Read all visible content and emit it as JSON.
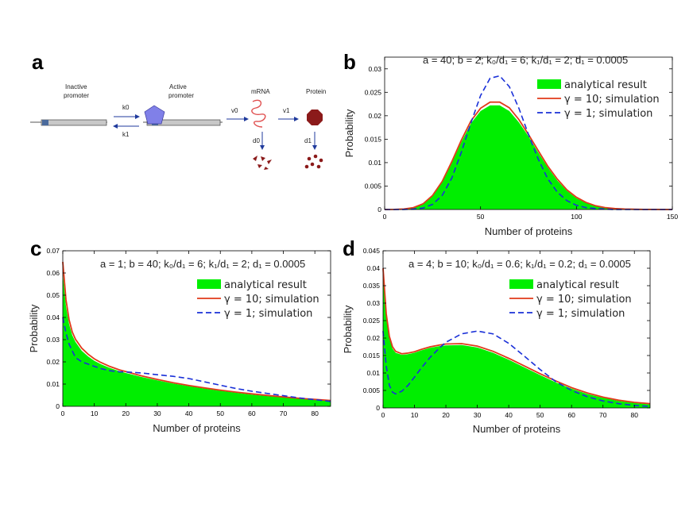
{
  "figure": {
    "panel_labels": [
      "a",
      "b",
      "c",
      "d"
    ]
  },
  "diagram": {
    "inactive_promoter": [
      "Inactive",
      "promoter"
    ],
    "active_promoter": [
      "Active",
      "promoter"
    ],
    "mrna": "mRNA",
    "protein": "Protein",
    "rates": {
      "k0": "k0",
      "k1": "k1",
      "v0": "v0",
      "v1": "v1",
      "d0": "d0",
      "d1": "d1"
    },
    "colors": {
      "promoter_body": "#c8c8c8",
      "site": "#4a6a9c",
      "activator": "#8080e8",
      "mrna": "#e05050",
      "protein": "#8b1a1a",
      "arrow": "#1f3a9c"
    }
  },
  "chart_data": [
    {
      "panel": "b",
      "type": "area",
      "params_line": "a = 40; b = 2; k₀/d₁ = 6; k₁/d₁ = 2; d₁ = 0.0005",
      "xlabel": "Number of proteins",
      "ylabel": "Probability",
      "xlim": [
        0,
        150
      ],
      "ylim": [
        0,
        0.0325
      ],
      "xticks": [
        0,
        50,
        100,
        150
      ],
      "yticks": [
        0,
        0.005,
        0.01,
        0.015,
        0.02,
        0.025,
        0.03
      ],
      "ytick_labels": [
        "0",
        "0.005",
        "0.01",
        "0.015",
        "0.02",
        "0.025",
        "0.03"
      ],
      "legend": [
        "analytical result",
        "γ = 10; simulation",
        "γ = 1; simulation"
      ],
      "x": [
        0,
        5,
        10,
        15,
        20,
        25,
        30,
        35,
        40,
        45,
        50,
        55,
        60,
        65,
        70,
        75,
        80,
        85,
        90,
        95,
        100,
        105,
        110,
        115,
        120,
        125,
        130,
        135,
        140,
        145,
        150
      ],
      "series": [
        {
          "name": "analytical result",
          "style": "fill",
          "color": "#00ee00",
          "values": [
            0,
            2e-05,
            0.0001,
            0.0004,
            0.0012,
            0.0029,
            0.0058,
            0.0099,
            0.0144,
            0.0184,
            0.021,
            0.0222,
            0.0222,
            0.021,
            0.0186,
            0.0156,
            0.0122,
            0.009,
            0.0062,
            0.004,
            0.0024,
            0.0014,
            0.0008,
            0.0004,
            0.0002,
            0.0001,
            4e-05,
            2e-05,
            1e-05,
            0,
            0
          ]
        },
        {
          "name": "γ = 10; simulation",
          "style": "solid",
          "color": "#e03a1a",
          "values": [
            0,
            2e-05,
            0.0001,
            0.0004,
            0.0012,
            0.003,
            0.006,
            0.0102,
            0.0148,
            0.0189,
            0.0216,
            0.0229,
            0.0229,
            0.0217,
            0.0192,
            0.016,
            0.0126,
            0.0093,
            0.0065,
            0.0042,
            0.0026,
            0.0015,
            0.0008,
            0.0004,
            0.0002,
            0.0001,
            5e-05,
            2e-05,
            1e-05,
            0,
            0
          ]
        },
        {
          "name": "γ = 1; simulation",
          "style": "dashed",
          "color": "#1a30d8",
          "values": [
            0,
            0,
            2e-05,
            0.0001,
            0.0003,
            0.0011,
            0.003,
            0.0067,
            0.0122,
            0.0185,
            0.0243,
            0.028,
            0.0285,
            0.0262,
            0.0216,
            0.016,
            0.0108,
            0.0066,
            0.0037,
            0.0019,
            0.0009,
            0.0004,
            0.0002,
            0.0001,
            0,
            0,
            0,
            0,
            0,
            0,
            0
          ]
        }
      ]
    },
    {
      "panel": "c",
      "type": "area",
      "params_line": "a = 1; b = 40;  k₀/d₁ = 6; k₁/d₁ = 2; d₁ = 0.0005",
      "xlabel": "Number of proteins",
      "ylabel": "Probability",
      "xlim": [
        0,
        85
      ],
      "ylim": [
        0,
        0.07
      ],
      "xticks": [
        0,
        10,
        20,
        30,
        40,
        50,
        60,
        70,
        80
      ],
      "yticks": [
        0,
        0.01,
        0.02,
        0.03,
        0.04,
        0.05,
        0.06,
        0.07
      ],
      "ytick_labels": [
        "0",
        "0.01",
        "0.02",
        "0.03",
        "0.04",
        "0.05",
        "0.06",
        "0.07"
      ],
      "legend": [
        "analytical result",
        "γ = 10; simulation",
        "γ = 1; simulation"
      ],
      "x": [
        0,
        1,
        2,
        3,
        4,
        6,
        8,
        10,
        12,
        15,
        18,
        20,
        25,
        30,
        35,
        40,
        45,
        50,
        55,
        60,
        65,
        70,
        75,
        80,
        85
      ],
      "series": [
        {
          "name": "analytical result",
          "style": "fill",
          "color": "#00ee00",
          "values": [
            0.06,
            0.045,
            0.037,
            0.032,
            0.029,
            0.025,
            0.0225,
            0.0205,
            0.019,
            0.0172,
            0.0158,
            0.015,
            0.0132,
            0.0117,
            0.0103,
            0.0091,
            0.008,
            0.007,
            0.0061,
            0.0053,
            0.0046,
            0.004,
            0.0034,
            0.0029,
            0.0025
          ]
        },
        {
          "name": "γ = 10; simulation",
          "style": "solid",
          "color": "#e03a1a",
          "values": [
            0.065,
            0.048,
            0.039,
            0.0335,
            0.0302,
            0.0262,
            0.0235,
            0.0214,
            0.0198,
            0.0179,
            0.0164,
            0.0156,
            0.0137,
            0.0121,
            0.0106,
            0.0094,
            0.0083,
            0.0073,
            0.0064,
            0.0056,
            0.0049,
            0.0042,
            0.0036,
            0.0031,
            0.0026
          ]
        },
        {
          "name": "γ = 1; simulation",
          "style": "dashed",
          "color": "#1a30d8",
          "values": [
            0.04,
            0.033,
            0.028,
            0.025,
            0.022,
            0.02,
            0.019,
            0.018,
            0.017,
            0.016,
            0.0155,
            0.0155,
            0.015,
            0.0142,
            0.0135,
            0.0125,
            0.011,
            0.0095,
            0.008,
            0.0068,
            0.0058,
            0.0048,
            0.0038,
            0.003,
            0.0022
          ]
        }
      ]
    },
    {
      "panel": "d",
      "type": "area",
      "params_line": "a = 4; b = 10;  k₀/d₁ = 0.6; k₁/d₁ = 0.2; d₁ = 0.0005",
      "xlabel": "Number of proteins",
      "ylabel": "Probability",
      "xlim": [
        0,
        85
      ],
      "ylim": [
        0,
        0.045
      ],
      "xticks": [
        0,
        10,
        20,
        30,
        40,
        50,
        60,
        70,
        80
      ],
      "yticks": [
        0,
        0.005,
        0.01,
        0.015,
        0.02,
        0.025,
        0.03,
        0.035,
        0.04,
        0.045
      ],
      "ytick_labels": [
        "0",
        "0.005",
        "0.01",
        "0.015",
        "0.02",
        "0.025",
        "0.03",
        "0.035",
        "0.04",
        "0.045"
      ],
      "legend": [
        "analytical result",
        "γ = 10; simulation",
        "γ = 1; simulation"
      ],
      "x": [
        0,
        1,
        2,
        3,
        4,
        6,
        8,
        10,
        12,
        15,
        18,
        20,
        25,
        30,
        35,
        40,
        45,
        50,
        55,
        60,
        65,
        70,
        75,
        80,
        85
      ],
      "series": [
        {
          "name": "analytical result",
          "style": "fill",
          "color": "#00ee00",
          "values": [
            0.038,
            0.026,
            0.02,
            0.017,
            0.0158,
            0.0152,
            0.0154,
            0.0158,
            0.0164,
            0.0172,
            0.0177,
            0.0179,
            0.018,
            0.0173,
            0.0158,
            0.0138,
            0.0116,
            0.0094,
            0.0073,
            0.0055,
            0.004,
            0.0029,
            0.002,
            0.0014,
            0.001
          ]
        },
        {
          "name": "γ = 10; simulation",
          "style": "solid",
          "color": "#e03a1a",
          "values": [
            0.04,
            0.027,
            0.0205,
            0.0175,
            0.0162,
            0.0155,
            0.0157,
            0.0161,
            0.0167,
            0.0175,
            0.018,
            0.0183,
            0.0184,
            0.0177,
            0.0162,
            0.0142,
            0.012,
            0.0098,
            0.0077,
            0.0058,
            0.0043,
            0.0031,
            0.0022,
            0.0016,
            0.0012
          ]
        },
        {
          "name": "γ = 1; simulation",
          "style": "dashed",
          "color": "#1a30d8",
          "values": [
            0.022,
            0.012,
            0.0065,
            0.0045,
            0.004,
            0.0048,
            0.0065,
            0.0088,
            0.0112,
            0.0145,
            0.0172,
            0.0188,
            0.0212,
            0.022,
            0.0212,
            0.0185,
            0.0148,
            0.011,
            0.0075,
            0.005,
            0.0032,
            0.002,
            0.0012,
            0.0007,
            0.0004
          ]
        }
      ]
    }
  ]
}
